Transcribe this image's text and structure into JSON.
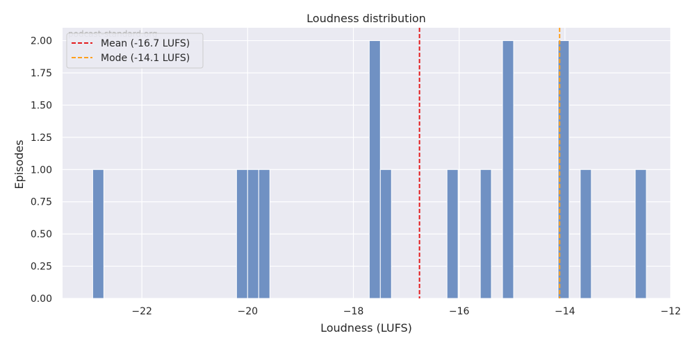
{
  "chart_data": {
    "type": "bar",
    "title": "Loudness distribution",
    "xlabel": "Loudness (LUFS)",
    "ylabel": "Episodes",
    "xlim": [
      -23.5,
      -12
    ],
    "ylim": [
      0,
      2.1
    ],
    "xticks": [
      -22,
      -20,
      -18,
      -16,
      -14,
      -12
    ],
    "xtick_labels": [
      "−22",
      "−20",
      "−18",
      "−16",
      "−14",
      "−12"
    ],
    "yticks": [
      0,
      0.25,
      0.5,
      0.75,
      1.0,
      1.25,
      1.5,
      1.75,
      2.0
    ],
    "ytick_labels": [
      "0.00",
      "0.25",
      "0.50",
      "0.75",
      "1.00",
      "1.25",
      "1.50",
      "1.75",
      "2.00"
    ],
    "grid": true,
    "legend_position": "top-left",
    "bin_width": 0.21,
    "bins": [
      {
        "x0": -22.93,
        "count": 1
      },
      {
        "x0": -20.21,
        "count": 1
      },
      {
        "x0": -20.0,
        "count": 1
      },
      {
        "x0": -19.79,
        "count": 1
      },
      {
        "x0": -17.7,
        "count": 2
      },
      {
        "x0": -17.49,
        "count": 1
      },
      {
        "x0": -16.23,
        "count": 1
      },
      {
        "x0": -15.6,
        "count": 1
      },
      {
        "x0": -15.18,
        "count": 2
      },
      {
        "x0": -14.13,
        "count": 2
      },
      {
        "x0": -13.71,
        "count": 1
      },
      {
        "x0": -12.67,
        "count": 1
      }
    ],
    "reference_lines": [
      {
        "name": "Mean (-16.7 LUFS)",
        "x": -16.75,
        "color": "#e31a1c"
      },
      {
        "name": "Mode (-14.1 LUFS)",
        "x": -14.1,
        "color": "#ff9f1c"
      }
    ],
    "watermark": "podcast-standard.org",
    "colors": {
      "bar": "#7091c3",
      "background": "#eaeaf2",
      "grid": "#ffffff"
    }
  }
}
